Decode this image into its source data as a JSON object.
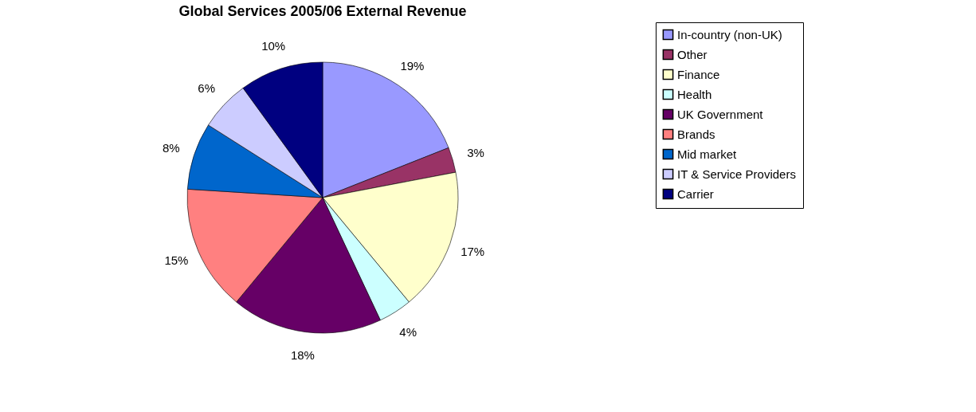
{
  "chart_data": {
    "type": "pie",
    "title": "Global Services 2005/06 External Revenue",
    "categories": [
      "In-country (non-UK)",
      "Other",
      "Finance",
      "Health",
      "UK Government",
      "Brands",
      "Mid market",
      "IT & Service Providers",
      "Carrier"
    ],
    "values": [
      19,
      3,
      17,
      4,
      18,
      15,
      8,
      6,
      10
    ],
    "colors": [
      "#9999ff",
      "#993366",
      "#ffffcc",
      "#ccffff",
      "#660066",
      "#ff8080",
      "#0066cc",
      "#ccccff",
      "#000080"
    ],
    "value_labels": [
      "19%",
      "3%",
      "17%",
      "4%",
      "18%",
      "15%",
      "8%",
      "6%",
      "10%"
    ],
    "legend": "right"
  }
}
